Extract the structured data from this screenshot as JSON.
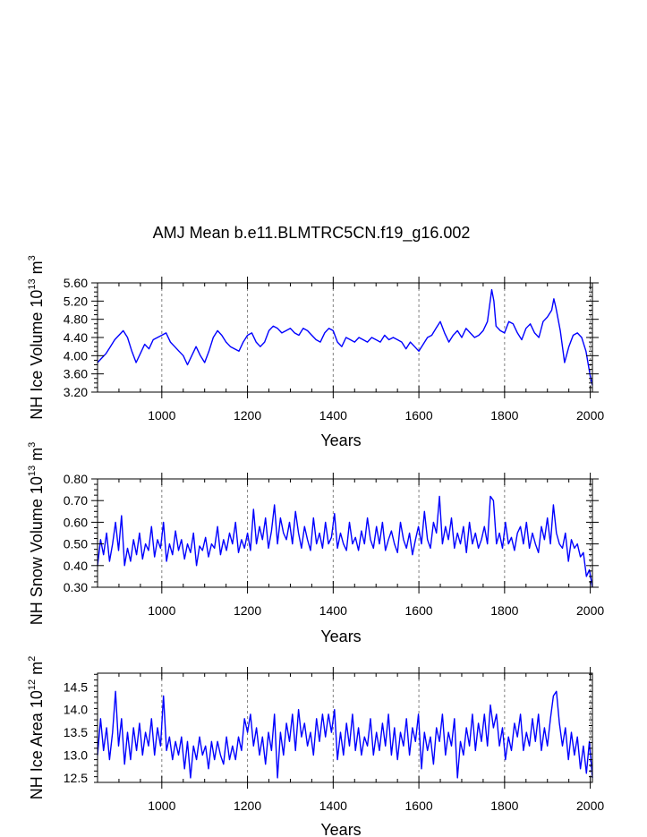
{
  "title": "AMJ Mean b.e11.BLMTRC5CN.f19_g16.002",
  "colors": {
    "line": "#0000ff",
    "grid": "#808080",
    "axis": "#000000",
    "background": "#ffffff"
  },
  "chart_data": [
    {
      "type": "line",
      "title": "AMJ Mean b.e11.BLMTRC5CN.f19_g16.002",
      "xlabel": "Years",
      "ylabel_prefix": "NH Ice Volume 10",
      "ylabel_exp": "13",
      "ylabel_unit": " m",
      "ylabel_unit_exp": "3",
      "xlim": [
        850,
        2005
      ],
      "ylim": [
        3.2,
        5.6
      ],
      "xticks": [
        1000,
        1200,
        1400,
        1600,
        1800,
        2000
      ],
      "xtick_labels": [
        "1000",
        "1200",
        "1400",
        "1600",
        "1800",
        "2000"
      ],
      "yticks": [
        3.2,
        3.6,
        4.0,
        4.4,
        4.8,
        5.2,
        5.6
      ],
      "ytick_labels": [
        "3.20",
        "3.60",
        "4.00",
        "4.40",
        "4.80",
        "5.20",
        "5.60"
      ],
      "grid": "vertical dashed at major x ticks",
      "series": [
        {
          "name": "NH Ice Volume",
          "x": [
            850,
            860,
            870,
            880,
            890,
            900,
            910,
            920,
            930,
            940,
            950,
            960,
            970,
            980,
            990,
            1000,
            1010,
            1020,
            1030,
            1040,
            1050,
            1060,
            1070,
            1080,
            1090,
            1100,
            1110,
            1120,
            1130,
            1140,
            1150,
            1160,
            1170,
            1180,
            1190,
            1200,
            1210,
            1220,
            1230,
            1240,
            1250,
            1260,
            1270,
            1280,
            1290,
            1300,
            1310,
            1320,
            1330,
            1340,
            1350,
            1360,
            1370,
            1380,
            1390,
            1400,
            1410,
            1420,
            1430,
            1440,
            1450,
            1460,
            1470,
            1480,
            1490,
            1500,
            1510,
            1520,
            1530,
            1540,
            1550,
            1560,
            1570,
            1580,
            1590,
            1600,
            1610,
            1620,
            1630,
            1640,
            1650,
            1660,
            1670,
            1680,
            1690,
            1700,
            1710,
            1720,
            1730,
            1740,
            1750,
            1760,
            1765,
            1770,
            1775,
            1780,
            1790,
            1800,
            1810,
            1820,
            1830,
            1840,
            1850,
            1860,
            1870,
            1880,
            1890,
            1900,
            1910,
            1915,
            1920,
            1930,
            1940,
            1950,
            1960,
            1970,
            1980,
            1990,
            2000,
            2005
          ],
          "values": [
            3.85,
            3.95,
            4.05,
            4.2,
            4.35,
            4.45,
            4.55,
            4.4,
            4.1,
            3.85,
            4.05,
            4.25,
            4.15,
            4.35,
            4.4,
            4.45,
            4.5,
            4.3,
            4.2,
            4.1,
            4.0,
            3.8,
            4.0,
            4.2,
            4.0,
            3.85,
            4.1,
            4.4,
            4.55,
            4.45,
            4.3,
            4.2,
            4.15,
            4.1,
            4.3,
            4.45,
            4.5,
            4.3,
            4.2,
            4.3,
            4.55,
            4.65,
            4.6,
            4.5,
            4.55,
            4.6,
            4.5,
            4.45,
            4.6,
            4.55,
            4.45,
            4.35,
            4.3,
            4.5,
            4.6,
            4.55,
            4.3,
            4.2,
            4.4,
            4.35,
            4.3,
            4.4,
            4.35,
            4.3,
            4.4,
            4.35,
            4.3,
            4.45,
            4.35,
            4.4,
            4.35,
            4.3,
            4.15,
            4.3,
            4.2,
            4.1,
            4.25,
            4.4,
            4.45,
            4.6,
            4.75,
            4.5,
            4.3,
            4.45,
            4.55,
            4.4,
            4.6,
            4.5,
            4.4,
            4.45,
            4.55,
            4.75,
            5.1,
            5.45,
            5.2,
            4.65,
            4.55,
            4.5,
            4.75,
            4.7,
            4.5,
            4.35,
            4.6,
            4.7,
            4.5,
            4.4,
            4.75,
            4.85,
            5.0,
            5.25,
            5.05,
            4.55,
            3.85,
            4.2,
            4.45,
            4.5,
            4.4,
            4.1,
            3.55,
            3.35
          ]
        }
      ]
    },
    {
      "type": "line",
      "xlabel": "Years",
      "ylabel_prefix": "NH Snow Volume 10",
      "ylabel_exp": "13",
      "ylabel_unit": " m",
      "ylabel_unit_exp": "3",
      "xlim": [
        850,
        2005
      ],
      "ylim": [
        0.3,
        0.8
      ],
      "xticks": [
        1000,
        1200,
        1400,
        1600,
        1800,
        2000
      ],
      "xtick_labels": [
        "1000",
        "1200",
        "1400",
        "1600",
        "1800",
        "2000"
      ],
      "yticks": [
        0.3,
        0.4,
        0.5,
        0.6,
        0.7,
        0.8
      ],
      "ytick_labels": [
        "0.30",
        "0.40",
        "0.50",
        "0.60",
        "0.70",
        "0.80"
      ],
      "grid": "vertical dashed at major x ticks",
      "series": [
        {
          "name": "NH Snow Volume",
          "x": [
            850,
            857,
            864,
            871,
            878,
            885,
            892,
            899,
            906,
            913,
            920,
            927,
            934,
            941,
            948,
            955,
            962,
            969,
            976,
            983,
            990,
            997,
            1004,
            1011,
            1018,
            1025,
            1032,
            1039,
            1046,
            1053,
            1060,
            1067,
            1074,
            1081,
            1088,
            1095,
            1102,
            1109,
            1116,
            1123,
            1130,
            1137,
            1144,
            1151,
            1158,
            1165,
            1172,
            1179,
            1186,
            1193,
            1200,
            1207,
            1214,
            1221,
            1228,
            1235,
            1242,
            1249,
            1256,
            1263,
            1270,
            1277,
            1284,
            1291,
            1298,
            1305,
            1312,
            1319,
            1326,
            1333,
            1340,
            1347,
            1354,
            1361,
            1368,
            1375,
            1382,
            1389,
            1396,
            1403,
            1410,
            1417,
            1424,
            1431,
            1438,
            1445,
            1452,
            1459,
            1466,
            1473,
            1480,
            1487,
            1494,
            1501,
            1508,
            1515,
            1522,
            1529,
            1536,
            1543,
            1550,
            1557,
            1564,
            1571,
            1578,
            1585,
            1592,
            1599,
            1606,
            1613,
            1620,
            1627,
            1634,
            1641,
            1648,
            1655,
            1662,
            1669,
            1676,
            1683,
            1690,
            1697,
            1704,
            1711,
            1718,
            1725,
            1732,
            1739,
            1746,
            1753,
            1760,
            1767,
            1774,
            1781,
            1788,
            1795,
            1802,
            1809,
            1816,
            1823,
            1830,
            1837,
            1844,
            1851,
            1858,
            1865,
            1872,
            1879,
            1886,
            1893,
            1900,
            1907,
            1914,
            1921,
            1928,
            1935,
            1942,
            1949,
            1956,
            1963,
            1970,
            1977,
            1984,
            1991,
            1998,
            2005
          ],
          "values": [
            0.4,
            0.52,
            0.45,
            0.55,
            0.42,
            0.5,
            0.6,
            0.47,
            0.63,
            0.4,
            0.48,
            0.42,
            0.52,
            0.45,
            0.55,
            0.43,
            0.5,
            0.47,
            0.58,
            0.44,
            0.52,
            0.48,
            0.6,
            0.42,
            0.5,
            0.45,
            0.56,
            0.47,
            0.52,
            0.43,
            0.5,
            0.46,
            0.55,
            0.4,
            0.49,
            0.47,
            0.53,
            0.44,
            0.5,
            0.48,
            0.58,
            0.45,
            0.52,
            0.47,
            0.55,
            0.5,
            0.6,
            0.46,
            0.52,
            0.48,
            0.55,
            0.47,
            0.66,
            0.5,
            0.58,
            0.52,
            0.62,
            0.48,
            0.56,
            0.68,
            0.5,
            0.62,
            0.55,
            0.52,
            0.6,
            0.5,
            0.65,
            0.55,
            0.48,
            0.58,
            0.52,
            0.47,
            0.62,
            0.5,
            0.55,
            0.48,
            0.6,
            0.5,
            0.53,
            0.64,
            0.48,
            0.55,
            0.5,
            0.47,
            0.6,
            0.5,
            0.53,
            0.47,
            0.56,
            0.5,
            0.62,
            0.52,
            0.48,
            0.58,
            0.5,
            0.6,
            0.47,
            0.52,
            0.56,
            0.5,
            0.46,
            0.6,
            0.52,
            0.48,
            0.55,
            0.45,
            0.52,
            0.58,
            0.5,
            0.65,
            0.52,
            0.48,
            0.6,
            0.55,
            0.72,
            0.5,
            0.58,
            0.52,
            0.62,
            0.48,
            0.55,
            0.5,
            0.58,
            0.46,
            0.6,
            0.5,
            0.55,
            0.48,
            0.52,
            0.58,
            0.5,
            0.72,
            0.7,
            0.5,
            0.55,
            0.48,
            0.6,
            0.5,
            0.53,
            0.47,
            0.55,
            0.58,
            0.5,
            0.6,
            0.48,
            0.55,
            0.5,
            0.46,
            0.58,
            0.52,
            0.62,
            0.5,
            0.68,
            0.55,
            0.5,
            0.48,
            0.55,
            0.42,
            0.52,
            0.48,
            0.5,
            0.44,
            0.46,
            0.35,
            0.38,
            0.3
          ]
        }
      ]
    },
    {
      "type": "line",
      "xlabel": "Years",
      "ylabel_prefix": "NH Ice Area 10",
      "ylabel_exp": "12",
      "ylabel_unit": " m",
      "ylabel_unit_exp": "2",
      "xlim": [
        850,
        2005
      ],
      "ylim": [
        12.4,
        14.8
      ],
      "xticks": [
        1000,
        1200,
        1400,
        1600,
        1800,
        2000
      ],
      "xtick_labels": [
        "1000",
        "1200",
        "1400",
        "1600",
        "1800",
        "2000"
      ],
      "yticks": [
        12.5,
        13.0,
        13.5,
        14.0,
        14.5
      ],
      "ytick_labels": [
        "12.5",
        "13.0",
        "13.5",
        "14.0",
        "14.5"
      ],
      "grid": "vertical dashed at major x ticks",
      "series": [
        {
          "name": "NH Ice Area",
          "x": [
            850,
            857,
            864,
            871,
            878,
            885,
            892,
            899,
            906,
            913,
            920,
            927,
            934,
            941,
            948,
            955,
            962,
            969,
            976,
            983,
            990,
            997,
            1004,
            1011,
            1018,
            1025,
            1032,
            1039,
            1046,
            1053,
            1060,
            1067,
            1074,
            1081,
            1088,
            1095,
            1102,
            1109,
            1116,
            1123,
            1130,
            1137,
            1144,
            1151,
            1158,
            1165,
            1172,
            1179,
            1186,
            1193,
            1200,
            1207,
            1214,
            1221,
            1228,
            1235,
            1242,
            1249,
            1256,
            1263,
            1270,
            1277,
            1284,
            1291,
            1298,
            1305,
            1312,
            1319,
            1326,
            1333,
            1340,
            1347,
            1354,
            1361,
            1368,
            1375,
            1382,
            1389,
            1396,
            1403,
            1410,
            1417,
            1424,
            1431,
            1438,
            1445,
            1452,
            1459,
            1466,
            1473,
            1480,
            1487,
            1494,
            1501,
            1508,
            1515,
            1522,
            1529,
            1536,
            1543,
            1550,
            1557,
            1564,
            1571,
            1578,
            1585,
            1592,
            1599,
            1606,
            1613,
            1620,
            1627,
            1634,
            1641,
            1648,
            1655,
            1662,
            1669,
            1676,
            1683,
            1690,
            1697,
            1704,
            1711,
            1718,
            1725,
            1732,
            1739,
            1746,
            1753,
            1760,
            1767,
            1774,
            1781,
            1788,
            1795,
            1802,
            1809,
            1816,
            1823,
            1830,
            1837,
            1844,
            1851,
            1858,
            1865,
            1872,
            1879,
            1886,
            1893,
            1900,
            1907,
            1914,
            1921,
            1928,
            1935,
            1942,
            1949,
            1956,
            1963,
            1970,
            1977,
            1984,
            1991,
            1998,
            2005
          ],
          "values": [
            13.0,
            13.8,
            13.1,
            13.6,
            12.9,
            13.5,
            14.4,
            13.2,
            13.8,
            12.8,
            13.5,
            12.9,
            13.6,
            13.1,
            13.7,
            13.0,
            13.5,
            13.2,
            13.8,
            13.0,
            13.6,
            13.2,
            14.3,
            13.1,
            13.4,
            12.9,
            13.3,
            13.0,
            13.4,
            12.7,
            13.3,
            12.5,
            13.2,
            12.9,
            13.4,
            13.0,
            13.2,
            12.7,
            13.3,
            12.9,
            13.3,
            13.0,
            12.8,
            13.4,
            12.9,
            13.2,
            12.9,
            13.4,
            13.1,
            13.8,
            13.5,
            13.9,
            13.2,
            13.6,
            13.0,
            13.4,
            12.8,
            13.5,
            13.1,
            13.9,
            12.5,
            13.5,
            13.0,
            13.7,
            13.3,
            13.9,
            13.1,
            14.0,
            13.4,
            13.7,
            13.2,
            13.5,
            13.0,
            13.8,
            13.3,
            13.9,
            13.4,
            13.9,
            13.5,
            14.0,
            12.9,
            13.5,
            13.0,
            13.7,
            13.2,
            13.9,
            13.1,
            13.6,
            13.0,
            13.4,
            13.2,
            13.8,
            13.0,
            13.5,
            13.1,
            13.7,
            13.2,
            13.9,
            13.0,
            13.6,
            12.9,
            13.5,
            13.2,
            13.8,
            13.0,
            13.6,
            13.3,
            13.9,
            12.7,
            13.5,
            13.1,
            13.4,
            12.8,
            13.6,
            13.3,
            13.9,
            13.0,
            13.5,
            13.2,
            13.8,
            12.5,
            13.3,
            13.0,
            13.6,
            13.2,
            13.9,
            13.1,
            13.7,
            13.3,
            13.9,
            13.2,
            14.1,
            13.6,
            13.9,
            13.2,
            13.6,
            12.9,
            13.4,
            13.1,
            13.7,
            13.4,
            13.9,
            13.1,
            13.5,
            13.2,
            13.8,
            13.3,
            13.9,
            13.1,
            13.6,
            13.2,
            13.8,
            14.3,
            14.4,
            13.7,
            13.2,
            13.6,
            12.9,
            13.5,
            13.0,
            13.4,
            12.7,
            13.2,
            12.6,
            13.3,
            12.5
          ]
        }
      ]
    }
  ]
}
